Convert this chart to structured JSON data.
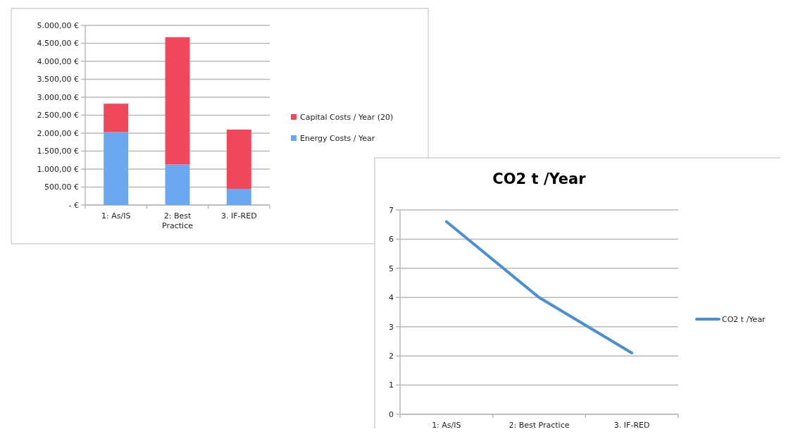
{
  "chart_data": [
    {
      "type": "bar",
      "stacked": true,
      "categories": [
        "1: As/IS",
        "2: Best Practice",
        "3. IF-RED"
      ],
      "series": [
        {
          "name": "Energy Costs / Year",
          "color": "#6aa8ef",
          "values": [
            2030,
            1130,
            450
          ]
        },
        {
          "name": "Capital Costs / Year (20)",
          "color": "#f0475a",
          "values": [
            790,
            3540,
            1650
          ]
        }
      ],
      "ylim": [
        0,
        5000
      ],
      "yticks": [
        {
          "value": 0,
          "label": "-  €"
        },
        {
          "value": 500,
          "label": "500,00 €"
        },
        {
          "value": 1000,
          "label": "1.000,00 €"
        },
        {
          "value": 1500,
          "label": "1.500,00 €"
        },
        {
          "value": 2000,
          "label": "2.000,00 €"
        },
        {
          "value": 2500,
          "label": "2.500,00 €"
        },
        {
          "value": 3000,
          "label": "3.000,00 €"
        },
        {
          "value": 3500,
          "label": "3.500,00 €"
        },
        {
          "value": 4000,
          "label": "4.000,00 €"
        },
        {
          "value": 4500,
          "label": "4.500,00 €"
        },
        {
          "value": 5000,
          "label": "5.000,00 €"
        }
      ],
      "grid": "y",
      "legend": "right"
    },
    {
      "type": "line",
      "title": "CO2 t /Year",
      "categories": [
        "1: As/IS",
        "2: Best Practice",
        "3. IF-RED"
      ],
      "series": [
        {
          "name": "CO2 t /Year",
          "color": "#4a8fd4",
          "values": [
            6.6,
            4.0,
            2.1
          ]
        }
      ],
      "ylim": [
        0,
        7
      ],
      "yticks": [
        0,
        1,
        2,
        3,
        4,
        5,
        6,
        7
      ],
      "grid": "y",
      "legend": "right",
      "marker": "none"
    }
  ]
}
